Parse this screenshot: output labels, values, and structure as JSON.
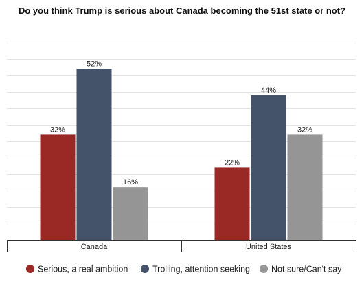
{
  "chart_data": {
    "type": "bar",
    "title": "Do you think Trump is serious about Canada becoming the 51st state or not?",
    "categories": [
      "Canada",
      "United States"
    ],
    "series": [
      {
        "name": "Serious, a real ambition",
        "values": [
          32,
          22
        ],
        "labels": [
          "32%",
          "22%"
        ],
        "color": "#9a2824"
      },
      {
        "name": "Trolling, attention seeking",
        "values": [
          52,
          44
        ],
        "labels": [
          "52%",
          "44%"
        ],
        "color": "#44526a"
      },
      {
        "name": "Not sure/Can't say",
        "values": [
          16,
          32
        ],
        "labels": [
          "16%",
          "32%"
        ],
        "color": "#959595"
      }
    ],
    "ylim": [
      0,
      60
    ],
    "grid": true,
    "legend_position": "bottom"
  }
}
